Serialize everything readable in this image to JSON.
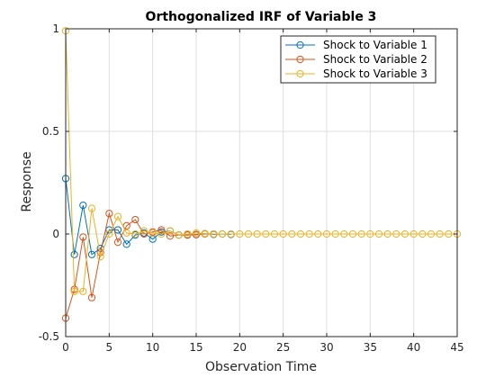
{
  "chart_data": {
    "type": "line",
    "title": "Orthogonalized IRF of Variable 3",
    "xlabel": "Observation Time",
    "ylabel": "Response",
    "xlim": [
      0,
      45
    ],
    "ylim": [
      -0.5,
      1
    ],
    "xticks": [
      0,
      5,
      10,
      15,
      20,
      25,
      30,
      35,
      40,
      45
    ],
    "yticks": [
      -0.5,
      0,
      0.5,
      1
    ],
    "grid": true,
    "legend_position": "top-right",
    "marker": "circle",
    "series": [
      {
        "name": "Shock to Variable 1",
        "color": "#0072BD",
        "x": [
          0,
          1,
          2,
          3,
          4,
          5,
          6,
          7,
          8,
          9,
          10,
          11,
          12,
          13,
          14,
          15,
          16,
          17,
          18,
          19
        ],
        "y": [
          0.27,
          -0.1,
          0.14,
          -0.1,
          -0.07,
          0.02,
          0.02,
          -0.05,
          -0.005,
          0.005,
          -0.025,
          0.01,
          0.015,
          -0.005,
          -0.005,
          -0.003,
          0.002,
          -0.002,
          0.0,
          -0.002
        ]
      },
      {
        "name": "Shock to Variable 2",
        "color": "#D95319",
        "x": [
          0,
          1,
          2,
          3,
          4,
          5,
          6,
          7,
          8,
          9,
          10,
          11,
          12,
          13,
          14,
          15,
          16,
          17
        ],
        "y": [
          -0.41,
          -0.27,
          -0.015,
          -0.31,
          -0.09,
          0.1,
          -0.04,
          0.04,
          0.07,
          0.0,
          0.01,
          0.02,
          -0.01,
          -0.005,
          -0.005,
          -0.003,
          0.0,
          0.0
        ]
      },
      {
        "name": "Shock to Variable 3",
        "color": "#EDB120",
        "x": [
          0,
          1,
          2,
          3,
          4,
          5,
          6,
          7,
          8,
          9,
          10,
          11,
          12,
          13,
          14,
          15,
          16,
          17,
          18,
          19,
          20,
          21,
          22,
          23,
          24,
          25,
          26,
          27,
          28,
          29,
          30,
          31,
          32,
          33,
          34,
          35,
          36,
          37,
          38,
          39,
          40,
          41,
          42,
          43,
          44,
          45
        ],
        "y": [
          0.99,
          -0.28,
          -0.28,
          0.125,
          -0.11,
          0.0,
          0.085,
          0.005,
          0.0,
          0.015,
          0.005,
          0.0,
          0.015,
          -0.005,
          0.0,
          0.005,
          0.002,
          0.0,
          0.0,
          0.0,
          0.0,
          0.0,
          0.0,
          0.0,
          0.0,
          0.0,
          0.0,
          0.0,
          0.0,
          0.0,
          0.0,
          0.0,
          0.0,
          0.0,
          0.0,
          0.0,
          0.0,
          0.0,
          0.0,
          0.0,
          0.0,
          0.0,
          0.0,
          0.0,
          0.0,
          0.0
        ]
      }
    ]
  }
}
